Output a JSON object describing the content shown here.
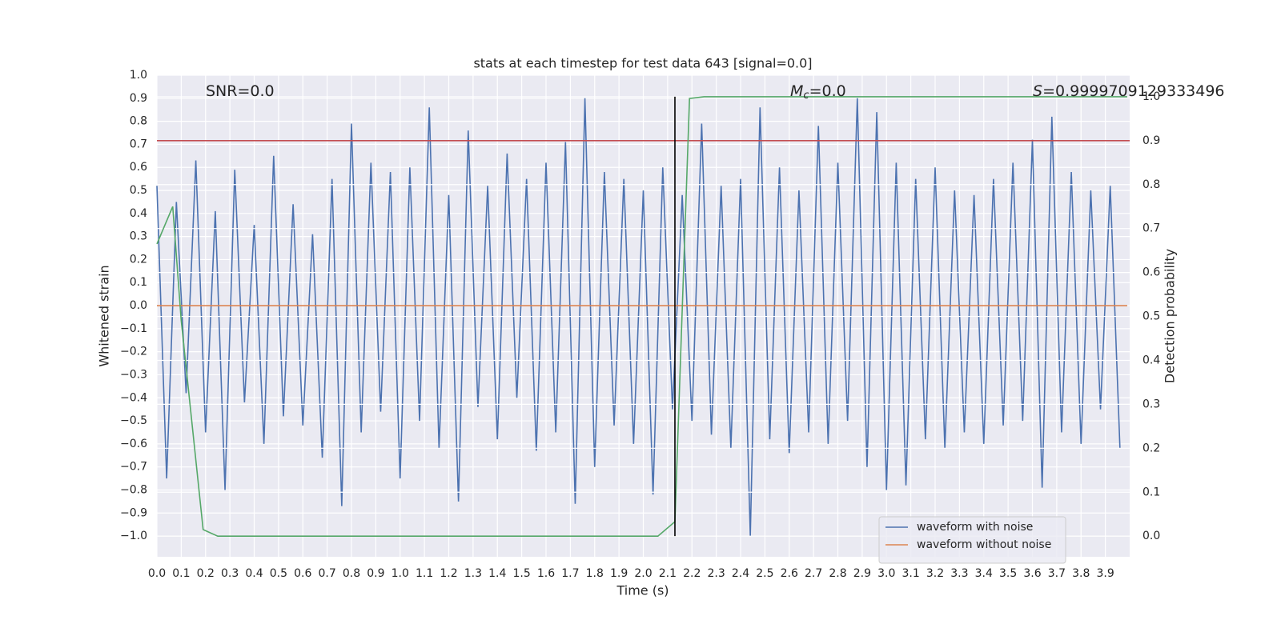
{
  "chart_data": {
    "type": "line",
    "title": "stats at each timestep for test data 643 [signal=0.0]",
    "xlabel": "Time (s)",
    "ylabel": "Whitened strain",
    "y2label": "Detection probability",
    "annotations": [
      {
        "text": "SNR=0.0"
      },
      {
        "symbol": "M",
        "subscript": "c",
        "text": "=0.0"
      },
      {
        "symbol": "S",
        "text": "=0.9999709129333496"
      }
    ],
    "xlim": [
      0,
      4.0
    ],
    "ylim": [
      -1.09,
      1.0
    ],
    "y2lim": [
      -0.047,
      1.049
    ],
    "xticks": [
      {
        "value": 0,
        "label": "0.0"
      },
      0.1,
      0.2,
      0.3,
      0.4,
      0.5,
      0.6,
      0.7,
      0.8,
      0.9,
      {
        "value": 1,
        "label": "1.0"
      },
      1.1,
      1.2,
      1.3,
      1.4,
      1.5,
      1.6,
      1.7,
      1.8,
      1.9,
      {
        "value": 2,
        "label": "2.0"
      },
      2.1,
      2.2,
      2.3,
      2.4,
      2.5,
      2.6,
      2.7,
      2.8,
      2.9,
      {
        "value": 3,
        "label": "3.0"
      },
      3.1,
      3.2,
      3.3,
      3.4,
      3.5,
      3.6,
      3.7,
      3.8,
      3.9
    ],
    "yticks": [
      {
        "value": -1,
        "label": "−1.0"
      },
      {
        "value": -0.9,
        "label": "−0.9"
      },
      {
        "value": -0.8,
        "label": "−0.8"
      },
      {
        "value": -0.7,
        "label": "−0.7"
      },
      {
        "value": -0.6,
        "label": "−0.6"
      },
      {
        "value": -0.5,
        "label": "−0.5"
      },
      {
        "value": -0.4,
        "label": "−0.4"
      },
      {
        "value": -0.3,
        "label": "−0.3"
      },
      {
        "value": -0.2,
        "label": "−0.2"
      },
      {
        "value": -0.1,
        "label": "−0.1"
      },
      {
        "value": 0,
        "label": "0.0"
      },
      0.1,
      0.2,
      0.3,
      0.4,
      0.5,
      0.6,
      0.7,
      0.8,
      0.9,
      {
        "value": 1,
        "label": "1.0"
      }
    ],
    "y2ticks": [
      {
        "value": 0,
        "label": "0.0"
      },
      0.1,
      0.2,
      0.3,
      0.4,
      0.5,
      0.6,
      0.7,
      0.8,
      0.9,
      {
        "value": 1,
        "label": "1.0"
      }
    ],
    "grid": true,
    "legend": "lower right",
    "series": [
      {
        "name": "waveform with noise",
        "color": "#4c72b0",
        "x": [
          0,
          0.04,
          0.08,
          0.12,
          0.16,
          0.2,
          0.24,
          0.28,
          0.32,
          0.36,
          0.4,
          0.44,
          0.48,
          0.52,
          0.56,
          0.6,
          0.64,
          0.68,
          0.72,
          0.76,
          0.8,
          0.84,
          0.88,
          0.92,
          0.96,
          1.0,
          1.04,
          1.08,
          1.12,
          1.16,
          1.2,
          1.24,
          1.28,
          1.32,
          1.36,
          1.4,
          1.44,
          1.48,
          1.52,
          1.56,
          1.6,
          1.64,
          1.68,
          1.72,
          1.76,
          1.8,
          1.84,
          1.88,
          1.92,
          1.96,
          2.0,
          2.04,
          2.08,
          2.12,
          2.16,
          2.2,
          2.24,
          2.28,
          2.32,
          2.36,
          2.4,
          2.44,
          2.48,
          2.52,
          2.56,
          2.6,
          2.64,
          2.68,
          2.72,
          2.76,
          2.8,
          2.84,
          2.88,
          2.92,
          2.96,
          3.0,
          3.04,
          3.08,
          3.12,
          3.16,
          3.2,
          3.24,
          3.28,
          3.32,
          3.36,
          3.4,
          3.44,
          3.48,
          3.52,
          3.56,
          3.6,
          3.64,
          3.68,
          3.72,
          3.76,
          3.8,
          3.84,
          3.88,
          3.92,
          3.96
        ],
        "values": [
          0.52,
          -0.75,
          0.45,
          -0.38,
          0.63,
          -0.55,
          0.41,
          -0.8,
          0.59,
          -0.42,
          0.35,
          -0.6,
          0.65,
          -0.48,
          0.44,
          -0.52,
          0.31,
          -0.66,
          0.55,
          -0.87,
          0.79,
          -0.55,
          0.62,
          -0.46,
          0.58,
          -0.75,
          0.6,
          -0.5,
          0.86,
          -0.62,
          0.48,
          -0.85,
          0.76,
          -0.44,
          0.52,
          -0.58,
          0.66,
          -0.4,
          0.55,
          -0.63,
          0.62,
          -0.55,
          0.71,
          -0.86,
          0.9,
          -0.7,
          0.58,
          -0.52,
          0.55,
          -0.6,
          0.5,
          -0.82,
          0.6,
          -0.45,
          0.48,
          -0.5,
          0.79,
          -0.56,
          0.52,
          -0.62,
          0.55,
          -1.0,
          0.86,
          -0.58,
          0.6,
          -0.64,
          0.5,
          -0.55,
          0.78,
          -0.6,
          0.62,
          -0.5,
          0.9,
          -0.7,
          0.84,
          -0.8,
          0.62,
          -0.78,
          0.55,
          -0.58,
          0.6,
          -0.62,
          0.5,
          -0.55,
          0.48,
          -0.6,
          0.55,
          -0.52,
          0.62,
          -0.5,
          0.72,
          -0.79,
          0.82,
          -0.55,
          0.58,
          -0.6,
          0.5,
          -0.45,
          0.52,
          -0.62
        ]
      },
      {
        "name": "waveform without noise",
        "color": "#dd8452",
        "x": [
          0,
          3.99
        ],
        "values": [
          0,
          0
        ]
      },
      {
        "color": "#55a868",
        "axis": "y2",
        "x": [
          0,
          0.065,
          0.1,
          0.19,
          0.25,
          2.06,
          2.13,
          2.19,
          2.25,
          3.99
        ],
        "values": [
          0.665,
          0.75,
          0.49,
          0.015,
          0,
          0,
          0.033,
          0.996,
          1.0,
          1.0
        ]
      }
    ],
    "threshold": {
      "value": 0.9,
      "axis": "y2",
      "color": "#c44e52"
    },
    "vline": {
      "x": 2.13,
      "y2range": [
        0,
        1
      ],
      "color": "#000000"
    }
  }
}
